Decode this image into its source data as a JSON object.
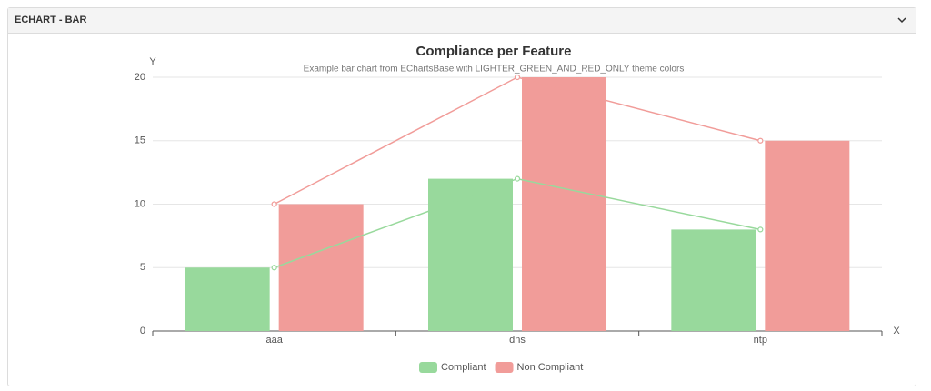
{
  "panel": {
    "title": "ECHART - BAR"
  },
  "chart_data": {
    "type": "bar",
    "title": "Compliance per Feature",
    "subtitle": "Example bar chart from EChartsBase with LIGHTER_GREEN_AND_RED_ONLY theme colors",
    "xlabel": "X",
    "ylabel": "Y",
    "categories": [
      "aaa",
      "dns",
      "ntp"
    ],
    "series": [
      {
        "name": "Compliant",
        "color": "#98d99c",
        "values": [
          5,
          12,
          8
        ],
        "line": true
      },
      {
        "name": "Non Compliant",
        "color": "#f19c99",
        "values": [
          10,
          20,
          15
        ],
        "line": true
      }
    ],
    "ylim": [
      0,
      20
    ],
    "yticks": [
      0,
      5,
      10,
      15,
      20
    ],
    "grid": true,
    "legend": "bottom"
  }
}
